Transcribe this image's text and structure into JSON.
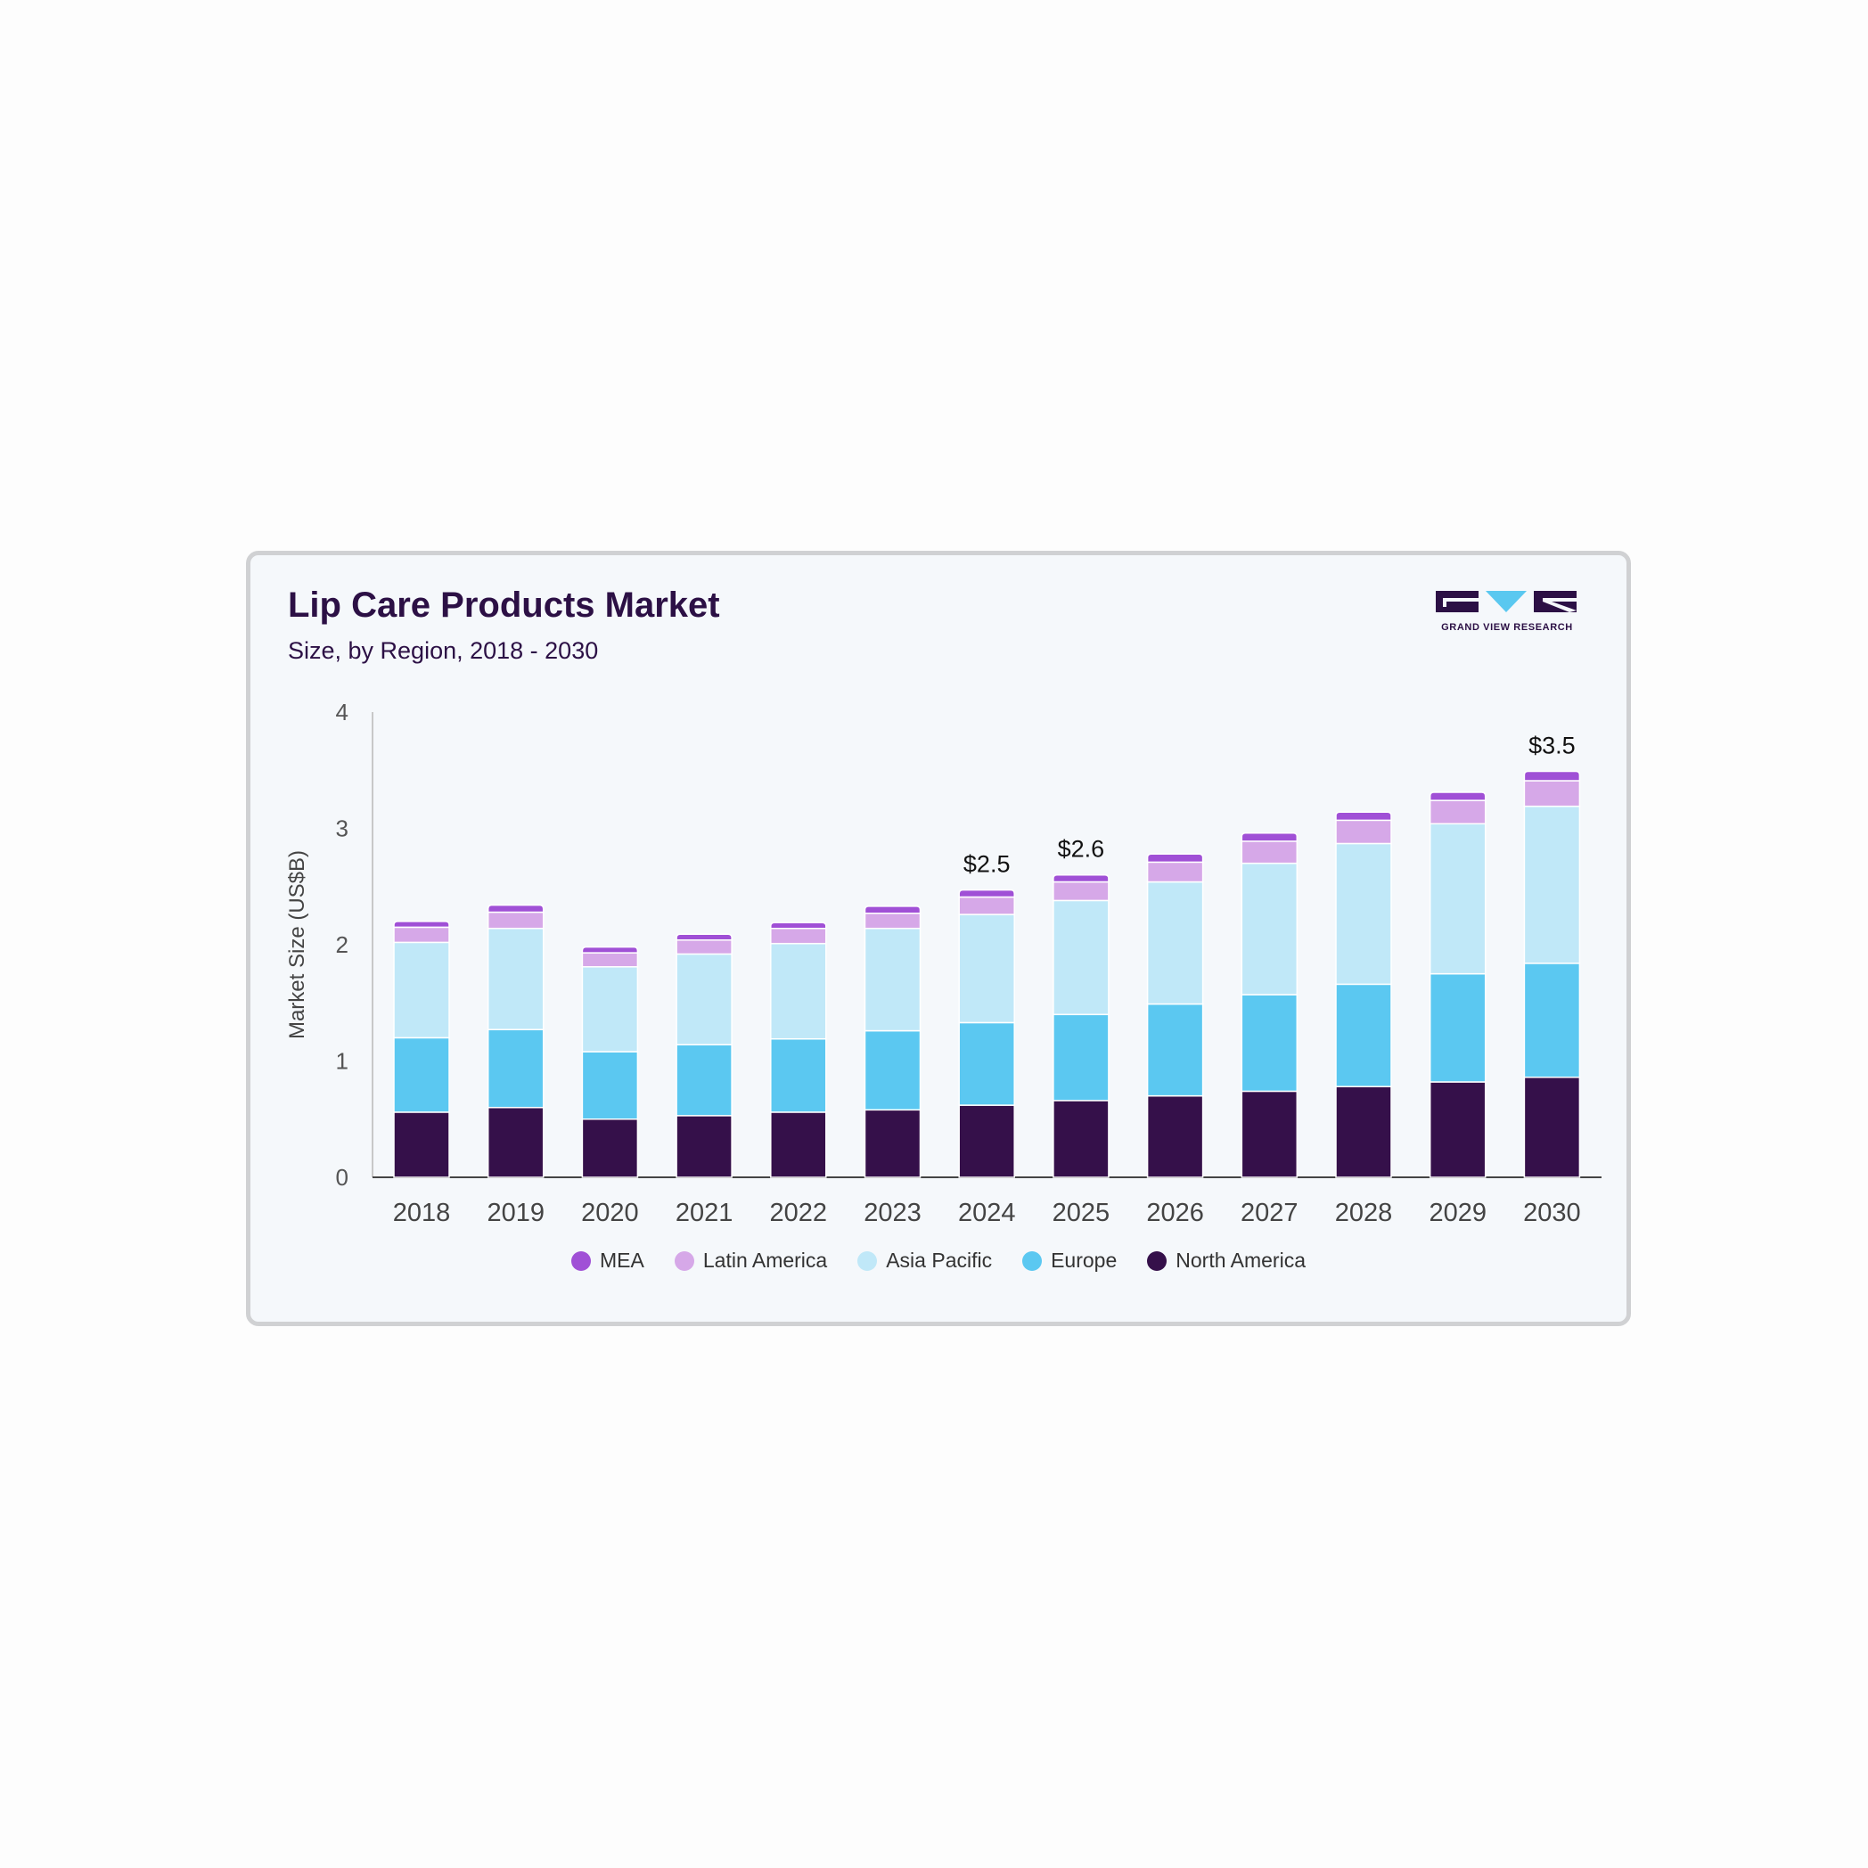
{
  "logo": {
    "text": "GRAND VIEW RESEARCH",
    "colors": {
      "dark": "#2c1045",
      "accent": "#5ac8f0"
    }
  },
  "chart_data": {
    "type": "bar",
    "stacked": true,
    "title": "Lip Care Products Market",
    "subtitle": "Size, by Region, 2018 - 2030",
    "xlabel": "",
    "ylabel": "Market Size (US$B)",
    "ylim": [
      0,
      4
    ],
    "yticks": [
      0,
      1,
      2,
      3,
      4
    ],
    "grid": false,
    "legend_position": "bottom",
    "categories": [
      "2018",
      "2019",
      "2020",
      "2021",
      "2022",
      "2023",
      "2024",
      "2025",
      "2026",
      "2027",
      "2028",
      "2029",
      "2030"
    ],
    "series": [
      {
        "name": "North America",
        "color": "#35104a",
        "values": [
          0.56,
          0.6,
          0.5,
          0.53,
          0.56,
          0.58,
          0.62,
          0.66,
          0.7,
          0.74,
          0.78,
          0.82,
          0.86
        ]
      },
      {
        "name": "Europe",
        "color": "#5bc8f1",
        "values": [
          0.64,
          0.67,
          0.58,
          0.61,
          0.63,
          0.68,
          0.71,
          0.74,
          0.79,
          0.83,
          0.88,
          0.93,
          0.98
        ]
      },
      {
        "name": "Asia Pacific",
        "color": "#c0e8f8",
        "values": [
          0.82,
          0.87,
          0.73,
          0.78,
          0.82,
          0.88,
          0.93,
          0.98,
          1.05,
          1.13,
          1.21,
          1.29,
          1.35
        ]
      },
      {
        "name": "Latin America",
        "color": "#d6a8e8",
        "values": [
          0.13,
          0.14,
          0.12,
          0.12,
          0.13,
          0.13,
          0.15,
          0.16,
          0.17,
          0.19,
          0.2,
          0.2,
          0.22
        ]
      },
      {
        "name": "MEA",
        "color": "#a050d6",
        "values": [
          0.05,
          0.06,
          0.05,
          0.05,
          0.05,
          0.06,
          0.06,
          0.06,
          0.07,
          0.07,
          0.07,
          0.07,
          0.08
        ]
      }
    ],
    "legend_order": [
      "MEA",
      "Latin America",
      "Asia Pacific",
      "Europe",
      "North America"
    ],
    "annotations": [
      {
        "category": "2024",
        "label": "$2.5"
      },
      {
        "category": "2025",
        "label": "$2.6"
      },
      {
        "category": "2030",
        "label": "$3.5"
      }
    ]
  }
}
